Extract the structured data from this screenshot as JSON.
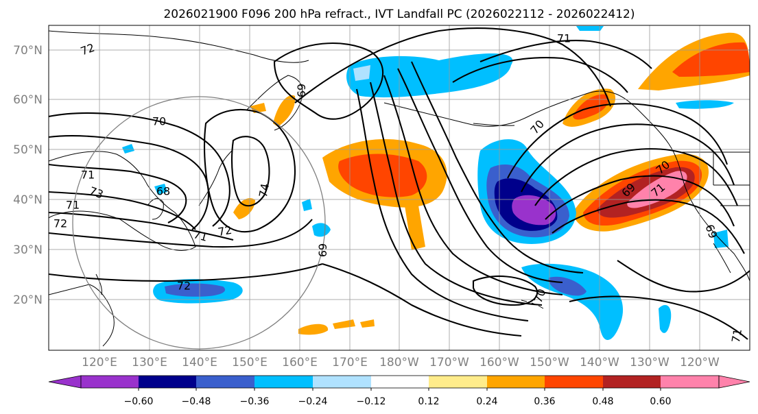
{
  "title": "2026021900 F096 200 hPa refract., IVT Landfall PC (2026022112 - 2026022412)",
  "axes": {
    "lat_labels": [
      "70°N",
      "60°N",
      "50°N",
      "40°N",
      "30°N",
      "20°N"
    ],
    "lon_labels": [
      "120°E",
      "130°E",
      "140°E",
      "150°E",
      "160°E",
      "170°E",
      "180°W",
      "170°W",
      "160°W",
      "150°W",
      "140°W",
      "130°W",
      "120°W"
    ]
  },
  "colorbar": {
    "colors": [
      "#9932cc",
      "#00008b",
      "#3a5fcd",
      "#00bfff",
      "#b0e2ff",
      "#ffffff",
      "#ffec8b",
      "#ffa500",
      "#ff4500",
      "#b22222",
      "#ff82ab"
    ],
    "tick_labels": [
      "−0.60",
      "−0.48",
      "−0.36",
      "−0.24",
      "−0.12",
      "0.12",
      "0.24",
      "0.36",
      "0.48",
      "0.60"
    ]
  },
  "contour_labels": [
    "72",
    "71",
    "70",
    "69",
    "71",
    "73",
    "72",
    "68",
    "71",
    "72",
    "74",
    "69",
    "69",
    "70",
    "71",
    "69",
    "70",
    "72",
    "71",
    "70",
    "71"
  ]
}
